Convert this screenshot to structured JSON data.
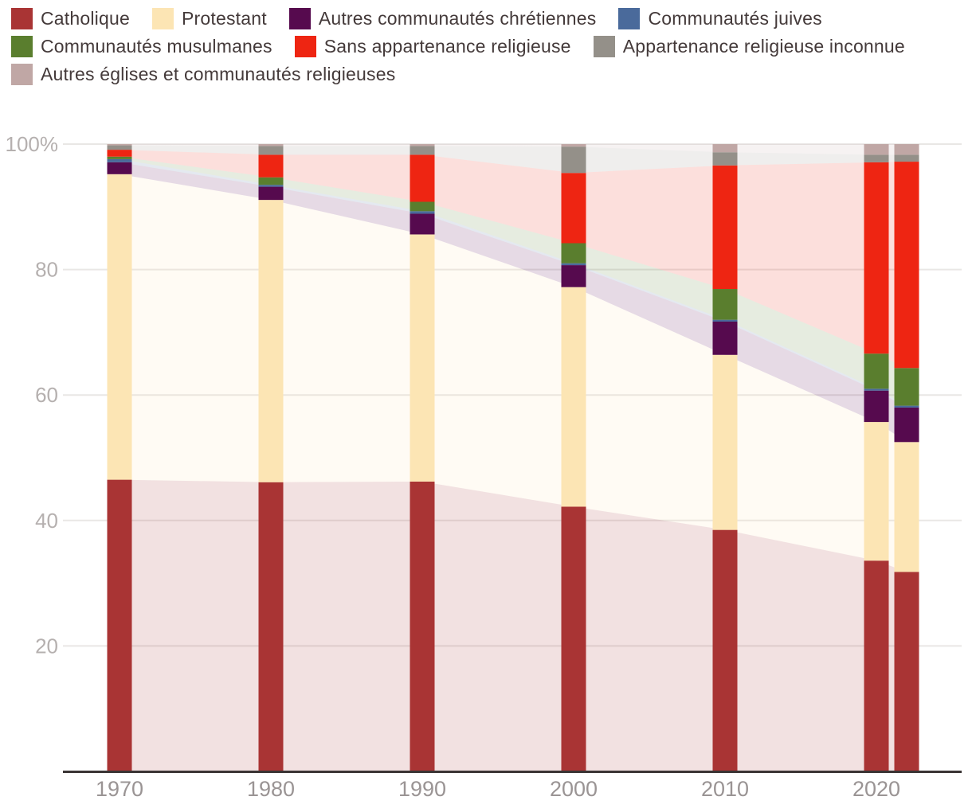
{
  "page": {
    "background_color": "#ffffff",
    "text_color": "#443a3a"
  },
  "axes": {
    "y_tick_labels": [
      "20",
      "40",
      "60",
      "80",
      "100%"
    ],
    "y_label_color": "#b5b0af",
    "x_tick_labels": [
      "1970",
      "1980",
      "1990",
      "2000",
      "2010",
      "2020"
    ],
    "x_label_color": "#9a9494",
    "gridline_color": "#e9e7e5",
    "axis_line_color": "#3a3434"
  },
  "chart_data": {
    "type": "bar",
    "subtype": "stacked-bars-with-area",
    "title": "",
    "unit": "%",
    "x": [
      1970,
      1980,
      1990,
      2000,
      2010,
      2020,
      2022
    ],
    "x_axis_tick_years": [
      1970,
      1980,
      1990,
      2000,
      2010,
      2020
    ],
    "ylim": [
      0,
      100
    ],
    "y_ticks": [
      20,
      40,
      60,
      80,
      100
    ],
    "grid": true,
    "legend_position": "top",
    "area_opacity": 0.15,
    "series": [
      {
        "name": "Catholique",
        "color": "#a93434",
        "values": [
          46.5,
          46.1,
          46.2,
          42.2,
          38.5,
          33.6,
          31.8
        ]
      },
      {
        "name": "Protestant",
        "color": "#fce5b4",
        "values": [
          48.7,
          45.0,
          39.4,
          35.0,
          27.9,
          22.1,
          20.7
        ]
      },
      {
        "name": "Autres communautés chrétiennes",
        "color": "#560a4e",
        "values": [
          1.9,
          2.1,
          3.3,
          3.5,
          5.3,
          5.0,
          5.5
        ]
      },
      {
        "name": "Communautés juives",
        "color": "#4a6a9b",
        "values": [
          0.5,
          0.3,
          0.4,
          0.3,
          0.3,
          0.3,
          0.3
        ]
      },
      {
        "name": "Communautés musulmanes",
        "color": "#5a7e2e",
        "values": [
          0.4,
          1.2,
          1.5,
          3.2,
          4.9,
          5.6,
          6.0
        ]
      },
      {
        "name": "Sans appartenance religieuse",
        "color": "#ee2512",
        "values": [
          1.1,
          3.6,
          7.5,
          11.2,
          19.7,
          30.5,
          32.9
        ]
      },
      {
        "name": "Appartenance religieuse inconnue",
        "color": "#949089",
        "values": [
          0.7,
          1.4,
          1.4,
          4.2,
          2.1,
          1.2,
          1.1
        ]
      },
      {
        "name": "Autres églises et communautés religieuses",
        "color": "#c0a7a5",
        "values": [
          0.2,
          0.3,
          0.3,
          0.4,
          1.3,
          1.7,
          1.7
        ]
      }
    ]
  }
}
